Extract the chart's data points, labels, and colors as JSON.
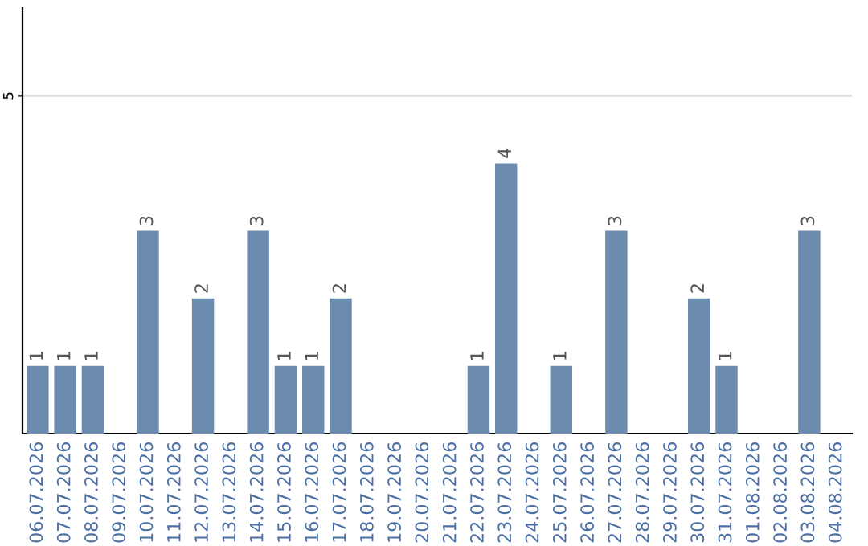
{
  "chart_data": {
    "type": "bar",
    "categories": [
      "06.07.2026",
      "07.07.2026",
      "08.07.2026",
      "09.07.2026",
      "10.07.2026",
      "11.07.2026",
      "12.07.2026",
      "13.07.2026",
      "14.07.2026",
      "15.07.2026",
      "16.07.2026",
      "17.07.2026",
      "18.07.2026",
      "19.07.2026",
      "20.07.2026",
      "21.07.2026",
      "22.07.2026",
      "23.07.2026",
      "24.07.2026",
      "25.07.2026",
      "26.07.2026",
      "27.07.2026",
      "28.07.2026",
      "29.07.2026",
      "30.07.2026",
      "31.07.2026",
      "01.08.2026",
      "02.08.2026",
      "03.08.2026",
      "04.08.2026"
    ],
    "values": [
      1,
      1,
      1,
      0,
      3,
      0,
      2,
      0,
      3,
      1,
      1,
      2,
      0,
      0,
      0,
      0,
      1,
      4,
      0,
      1,
      0,
      3,
      0,
      0,
      2,
      1,
      0,
      0,
      3,
      0
    ],
    "value_labels": [
      "1",
      "1",
      "1",
      null,
      "3",
      null,
      "2",
      null,
      "3",
      "1",
      "1",
      "2",
      null,
      null,
      null,
      null,
      "1",
      "4",
      null,
      "1",
      null,
      "3",
      null,
      null,
      "2",
      "1",
      null,
      null,
      "3",
      null
    ],
    "color": "#6b8cae",
    "ylim": [
      0,
      6.3
    ],
    "yticks": [
      5
    ],
    "grid": "y"
  }
}
